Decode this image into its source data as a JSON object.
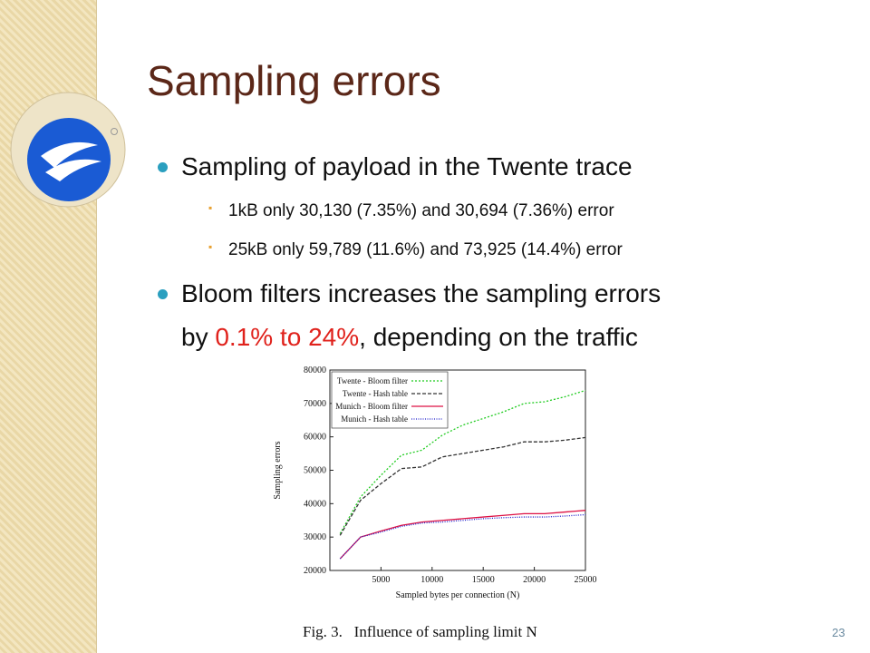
{
  "slide": {
    "title": "Sampling errors",
    "bullet1": {
      "text": "Sampling of payload in the Twente trace",
      "sub": [
        "1kB only 30,130 (7.35%) and 30,694 (7.36%) error",
        "25kB only 59,789 (11.6%) and 73,925 (14.4%) error"
      ]
    },
    "bullet2": {
      "parts": [
        "Bloom filters increases the sampling errors",
        "by ",
        "0.1% to 24%",
        ", depending on the traffic"
      ]
    },
    "page_number": "23"
  },
  "figure": {
    "caption": "Fig. 3.   Influence of sampling limit N",
    "chart_data": {
      "type": "line",
      "x_label": "Sampled bytes per connection (N)",
      "y_label": "Sampling errors",
      "x": [
        1000,
        3000,
        5000,
        7000,
        9000,
        11000,
        13000,
        15000,
        17000,
        19000,
        21000,
        23000,
        25000
      ],
      "series": [
        {
          "name": "Twente - Bloom filter",
          "color": "#22cc22",
          "dash": "2,2",
          "values": [
            31000,
            42000,
            48500,
            54500,
            56000,
            60500,
            63500,
            65500,
            67500,
            70000,
            70500,
            72000,
            73900
          ]
        },
        {
          "name": "Twente - Hash table",
          "color": "#333333",
          "dash": "4,2",
          "values": [
            30500,
            41000,
            46000,
            50500,
            51000,
            54000,
            55000,
            56000,
            57000,
            58500,
            58500,
            59000,
            59800
          ]
        },
        {
          "name": "Munich - Bloom filter",
          "color": "#dd1144",
          "dash": "none",
          "values": [
            23500,
            30000,
            31800,
            33500,
            34500,
            35000,
            35500,
            36000,
            36500,
            37000,
            37000,
            37500,
            38000
          ]
        },
        {
          "name": "Munich - Hash table",
          "color": "#2222cc",
          "dash": "1,1.5",
          "values": [
            23500,
            30000,
            31500,
            33200,
            34200,
            34500,
            35000,
            35500,
            35800,
            36000,
            36000,
            36300,
            36700
          ]
        }
      ],
      "xlim": [
        0,
        25000
      ],
      "xticks": [
        5000,
        10000,
        15000,
        20000,
        25000
      ],
      "ylim": [
        20000,
        80000
      ],
      "yticks": [
        20000,
        30000,
        40000,
        50000,
        60000,
        70000,
        80000
      ],
      "legend": "upper left"
    }
  }
}
